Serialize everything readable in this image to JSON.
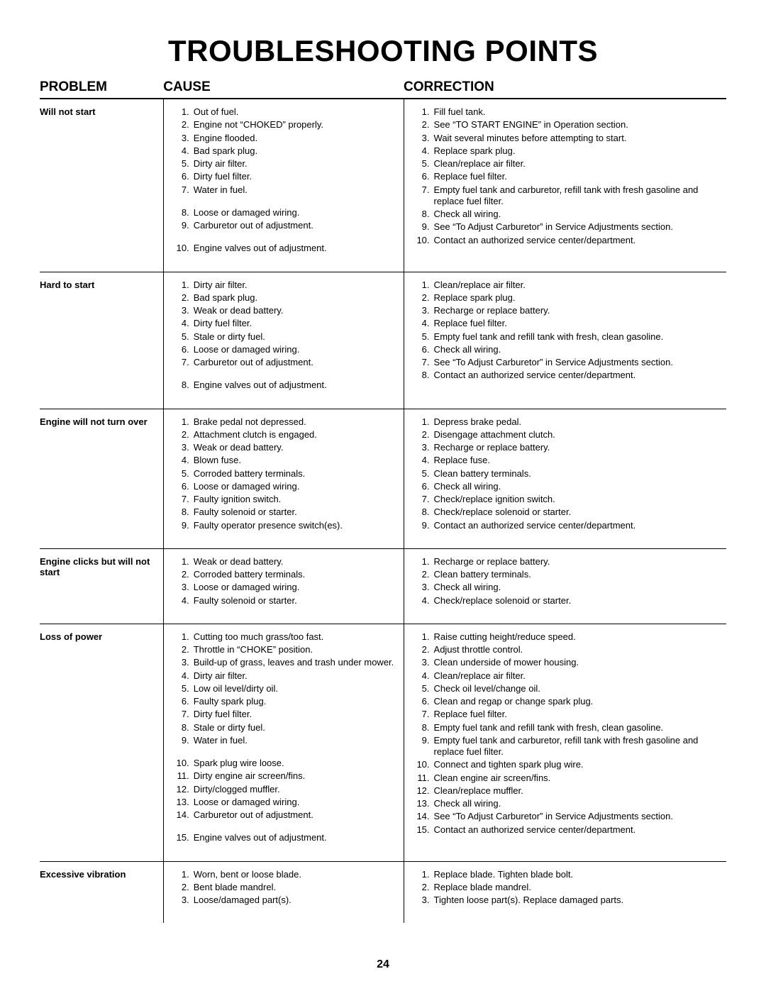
{
  "title": "TROUBLESHOOTING POINTS",
  "headers": {
    "problem": "PROBLEM",
    "cause": "CAUSE",
    "correction": "CORRECTION"
  },
  "page_number": "24",
  "columns": {
    "problem_width_pct": 18,
    "cause_width_pct": 35,
    "correction_width_pct": 47
  },
  "fonts": {
    "title_pt": 42,
    "header_pt": 19,
    "body_pt": 13,
    "page_num_pt": 16
  },
  "colors": {
    "text": "#000000",
    "background": "#ffffff",
    "border": "#000000"
  },
  "rows": [
    {
      "problem": "Will not start",
      "causes": [
        "Out of fuel.",
        "Engine not “CHOKED” properly.",
        "Engine flooded.",
        "Bad spark plug.",
        "Dirty air filter.",
        "Dirty fuel filter.",
        "Water in fuel.\n",
        "Loose or damaged wiring.",
        "Carburetor out of adjustment.\n",
        "Engine valves out of adjustment."
      ],
      "corrections": [
        "Fill fuel tank.",
        "See “TO START ENGINE” in Operation section.",
        "Wait several minutes before attempting to start.",
        "Replace spark plug.",
        "Clean/replace air filter.",
        "Replace fuel filter.",
        "Empty fuel tank and carburetor, refill tank with fresh gasoline and replace fuel filter.",
        "Check all wiring.",
        "See “To Adjust Carburetor” in Service Adjustments section.",
        "Contact an authorized service center/department."
      ]
    },
    {
      "problem": "Hard to start",
      "causes": [
        "Dirty air filter.",
        "Bad spark plug.",
        "Weak or dead battery.",
        "Dirty fuel filter.",
        "Stale or dirty fuel.",
        "Loose or damaged wiring.",
        "Carburetor out of adjustment.\n",
        "Engine valves out of adjustment."
      ],
      "corrections": [
        "Clean/replace air filter.",
        "Replace spark plug.",
        "Recharge or replace battery.",
        "Replace fuel filter.",
        "Empty fuel tank and refill tank with fresh, clean gasoline.",
        "Check all wiring.",
        "See “To Adjust Carburetor” in Service Adjustments section.",
        "Contact an authorized service center/department."
      ]
    },
    {
      "problem": "Engine will not turn over",
      "causes": [
        "Brake pedal not depressed.",
        "Attachment clutch is engaged.",
        "Weak or dead battery.",
        "Blown fuse.",
        "Corroded battery terminals.",
        "Loose or damaged wiring.",
        "Faulty ignition switch.",
        "Faulty solenoid or starter.",
        "Faulty operator presence switch(es)."
      ],
      "corrections": [
        "Depress brake pedal.",
        "Disengage attachment clutch.",
        "Recharge or replace battery.",
        "Replace fuse.",
        "Clean battery terminals.",
        "Check all wiring.",
        "Check/replace ignition switch.",
        "Check/replace solenoid or starter.",
        "Contact an authorized service center/department."
      ]
    },
    {
      "problem": "Engine clicks but will not start",
      "causes": [
        "Weak or dead battery.",
        "Corroded battery terminals.",
        "Loose or damaged wiring.",
        "Faulty solenoid or starter."
      ],
      "corrections": [
        "Recharge or replace battery.",
        "Clean battery terminals.",
        "Check all wiring.",
        "Check/replace solenoid or starter."
      ]
    },
    {
      "problem": "Loss of power",
      "causes": [
        "Cutting too much grass/too fast.",
        "Throttle in “CHOKE” position.",
        "Build-up of grass, leaves and trash under mower.",
        "Dirty air filter.",
        "Low oil level/dirty oil.",
        "Faulty spark plug.",
        "Dirty fuel filter.",
        "Stale or dirty fuel.",
        "Water in fuel.\n",
        "Spark plug wire loose.",
        "Dirty engine air screen/fins.",
        "Dirty/clogged muffler.",
        "Loose or damaged wiring.",
        "Carburetor out of adjustment.\n",
        "Engine valves out of adjustment."
      ],
      "corrections": [
        "Raise cutting height/reduce speed.",
        "Adjust throttle control.",
        "Clean underside of mower housing.",
        "Clean/replace air filter.",
        "Check oil level/change oil.",
        "Clean and regap or change spark plug.",
        "Replace fuel filter.",
        "Empty fuel tank and refill tank with fresh, clean gasoline.",
        "Empty fuel tank and carburetor, refill tank with fresh gasoline and replace fuel filter.",
        "Connect and tighten spark plug wire.",
        "Clean engine air screen/fins.",
        "Clean/replace muffler.",
        "Check all wiring.",
        "See “To Adjust Carburetor” in Service Adjustments section.",
        "Contact an authorized service center/department."
      ]
    },
    {
      "problem": "Excessive vibration",
      "causes": [
        "Worn, bent or loose blade.",
        "Bent blade mandrel.",
        "Loose/damaged part(s)."
      ],
      "corrections": [
        "Replace blade.  Tighten blade bolt.",
        "Replace blade mandrel.",
        "Tighten loose part(s).  Replace damaged parts."
      ]
    }
  ]
}
